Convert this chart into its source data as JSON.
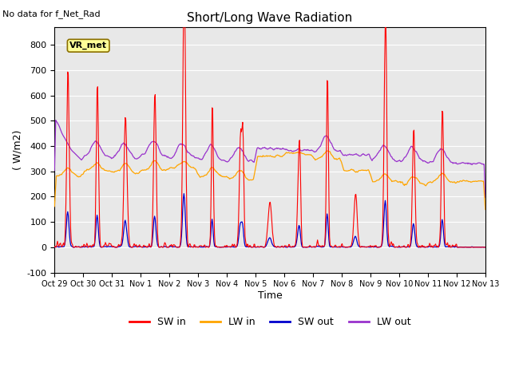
{
  "title": "Short/Long Wave Radiation",
  "subtitle": "No data for f_Net_Rad",
  "box_label": "VR_met",
  "ylabel": "( W/m2)",
  "xlabel": "Time",
  "ylim": [
    -100,
    870
  ],
  "yticks": [
    -100,
    0,
    100,
    200,
    300,
    400,
    500,
    600,
    700,
    800
  ],
  "xtick_labels": [
    "Oct 29",
    "Oct 30",
    "Oct 31",
    "Nov 1",
    "Nov 2",
    "Nov 3",
    "Nov 4",
    "Nov 5",
    "Nov 6",
    "Nov 7",
    "Nov 8",
    "Nov 9",
    "Nov 10",
    "Nov 11",
    "Nov 12",
    "Nov 13"
  ],
  "colors": {
    "SW_in": "#FF0000",
    "LW_in": "#FFA500",
    "SW_out": "#0000CC",
    "LW_out": "#9932CC"
  },
  "legend_labels": [
    "SW in",
    "LW in",
    "SW out",
    "LW out"
  ],
  "bg_color": "#E8E8E8",
  "fig_bg": "#FFFFFF"
}
